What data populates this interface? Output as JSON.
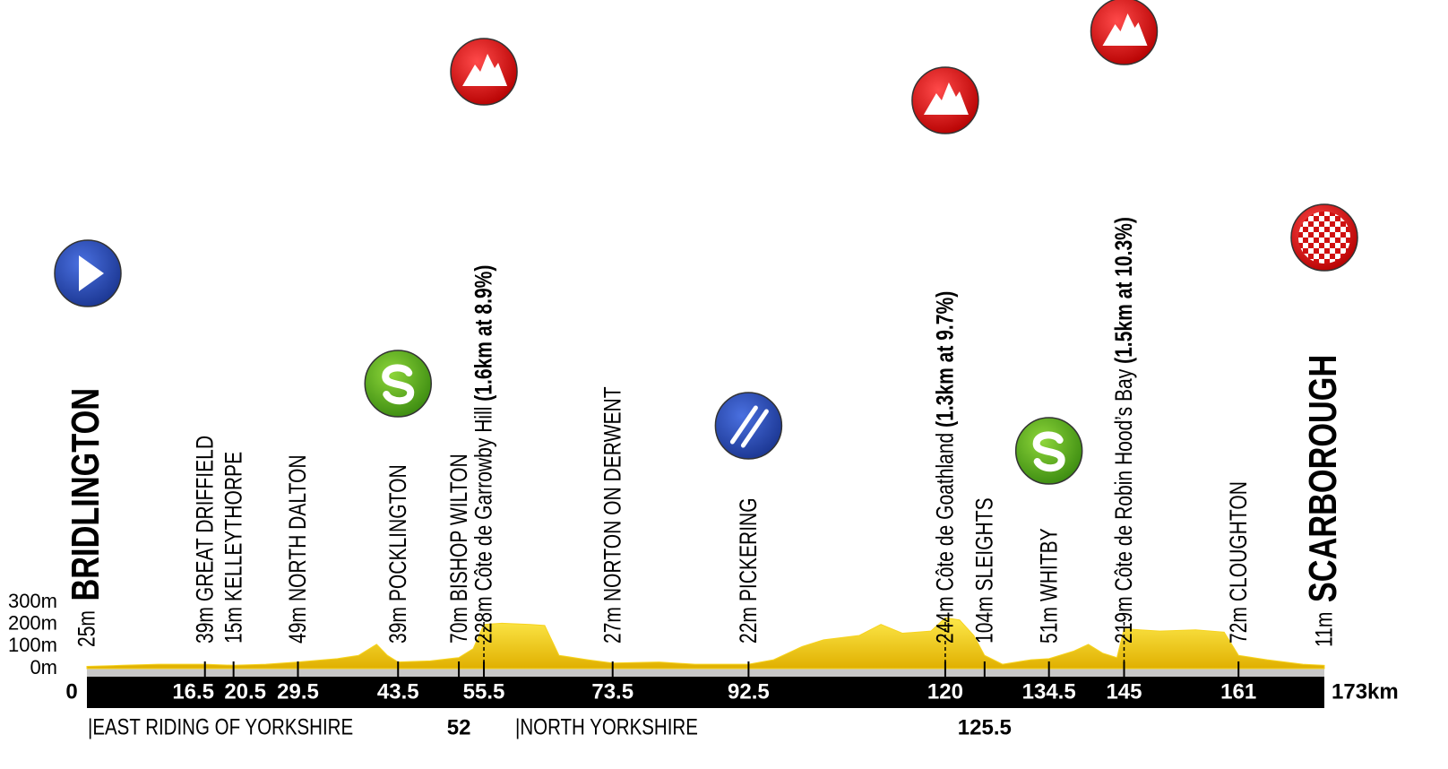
{
  "chart_data": {
    "type": "area",
    "color": "#f7d31e",
    "xlim": [
      0,
      173
    ],
    "xticks": [
      0,
      {
        "value": 173,
        "label": "173km"
      }
    ],
    "ylim": [
      0,
      300
    ],
    "yticks": [
      {
        "value": 0,
        "label": "0m"
      },
      {
        "value": 100,
        "label": "100m"
      },
      {
        "value": 200,
        "label": "200m"
      },
      {
        "value": 300,
        "label": "300m"
      }
    ],
    "x": [
      0,
      5,
      10,
      16.5,
      20.5,
      25,
      29.5,
      35,
      38,
      40.5,
      42,
      43.5,
      48,
      52,
      54,
      55.5,
      58,
      62,
      64,
      66,
      70,
      73.5,
      80,
      85,
      92.5,
      96,
      100,
      103,
      108,
      111,
      114,
      118,
      120,
      122,
      124,
      125.5,
      128,
      132,
      134.5,
      138,
      140,
      142,
      144,
      145,
      150,
      155,
      159,
      161,
      165,
      170,
      173
    ],
    "values": [
      10,
      15,
      20,
      20,
      15,
      20,
      30,
      45,
      60,
      110,
      60,
      30,
      35,
      50,
      90,
      200,
      205,
      200,
      195,
      60,
      40,
      25,
      30,
      20,
      20,
      40,
      100,
      130,
      150,
      200,
      160,
      170,
      230,
      220,
      150,
      60,
      20,
      40,
      45,
      80,
      110,
      70,
      50,
      180,
      170,
      175,
      165,
      60,
      40,
      20,
      15
    ],
    "places": [
      {
        "km": 0,
        "altitude": "25m",
        "name": "BRIDLINGTON",
        "emphasis": true
      },
      {
        "km": 16.5,
        "altitude": "39m",
        "name": "GREAT DRIFFIELD"
      },
      {
        "km": 20.5,
        "altitude": "15m",
        "name": "KELLEYTHORPE"
      },
      {
        "km": 29.5,
        "altitude": "49m",
        "name": "NORTH DALTON"
      },
      {
        "km": 43.5,
        "altitude": "39m",
        "name": "POCKLINGTON"
      },
      {
        "km": 52,
        "altitude": "70m",
        "name": "BISHOP WILTON",
        "label_below": true
      },
      {
        "km": 55.5,
        "altitude": "228m",
        "name": "Côte de Garrowby Hill",
        "climb": "(1.6km at 8.9%)"
      },
      {
        "km": 73.5,
        "altitude": "27m",
        "name": "NORTON ON DERWENT"
      },
      {
        "km": 92.5,
        "altitude": "22m",
        "name": "PICKERING"
      },
      {
        "km": 120,
        "altitude": "244m",
        "name": "Côte de Goathland",
        "climb": "(1.3km at 9.7%)"
      },
      {
        "km": 125.5,
        "altitude": "104m",
        "name": "SLEIGHTS",
        "label_below": true
      },
      {
        "km": 134.5,
        "altitude": "51m",
        "name": "WHITBY"
      },
      {
        "km": 145,
        "altitude": "219m",
        "name": "Côte de Robin Hood’s Bay",
        "climb": "(1.5km at 10.3%)"
      },
      {
        "km": 161,
        "altitude": "72m",
        "name": "CLOUGHTON"
      },
      {
        "km": 173,
        "altitude": "11m",
        "name": "SCARBOROUGH",
        "emphasis": true
      }
    ],
    "regions": [
      "|EAST RIDING OF YORKSHIRE",
      "|NORTH YORKSHIRE"
    ]
  }
}
